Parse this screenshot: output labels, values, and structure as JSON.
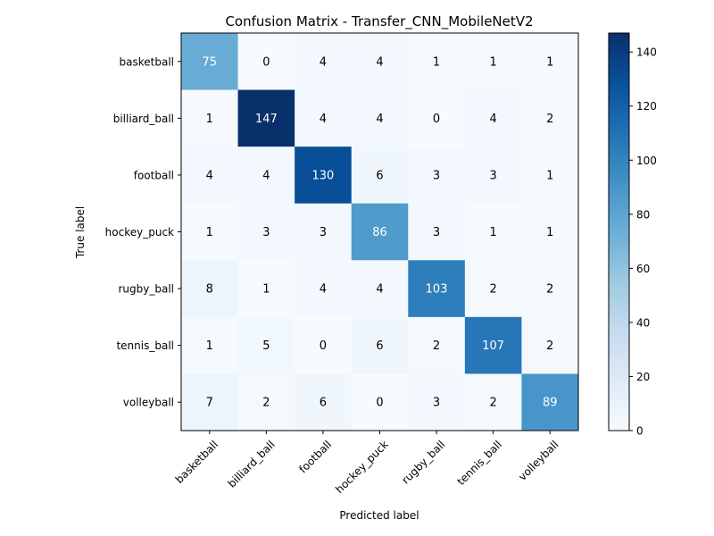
{
  "chart_data": {
    "type": "heatmap",
    "title": "Confusion Matrix - Transfer_CNN_MobileNetV2",
    "xlabel": "Predicted label",
    "ylabel": "True label",
    "x_categories": [
      "basketball",
      "billiard_ball",
      "football",
      "hockey_puck",
      "rugby_ball",
      "tennis_ball",
      "volleyball"
    ],
    "y_categories": [
      "basketball",
      "billiard_ball",
      "football",
      "hockey_puck",
      "rugby_ball",
      "tennis_ball",
      "volleyball"
    ],
    "values": [
      [
        75,
        0,
        4,
        4,
        1,
        1,
        1
      ],
      [
        1,
        147,
        4,
        4,
        0,
        4,
        2
      ],
      [
        4,
        4,
        130,
        6,
        3,
        3,
        1
      ],
      [
        1,
        3,
        3,
        86,
        3,
        1,
        1
      ],
      [
        8,
        1,
        4,
        4,
        103,
        2,
        2
      ],
      [
        1,
        5,
        0,
        6,
        2,
        107,
        2
      ],
      [
        7,
        2,
        6,
        0,
        3,
        2,
        89
      ]
    ],
    "colormap": "Blues",
    "colorbar": {
      "range": [
        0,
        147
      ],
      "ticks": [
        0,
        20,
        40,
        60,
        80,
        100,
        120,
        140
      ]
    },
    "grid": false,
    "x_tick_rotation_deg": 45
  }
}
